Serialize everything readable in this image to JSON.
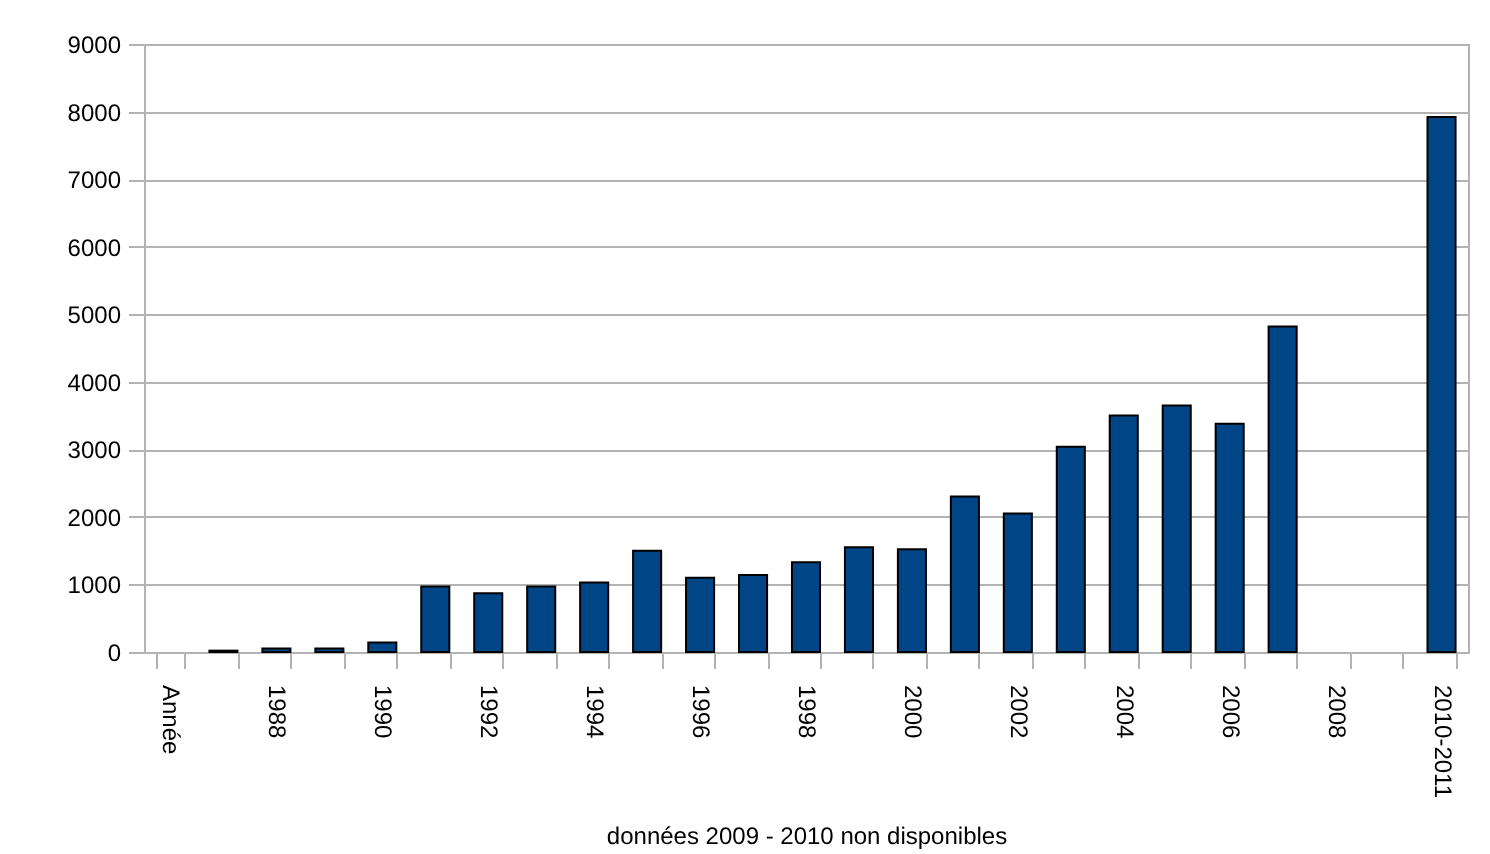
{
  "chart_data": {
    "type": "bar",
    "xlabel": "données 2009 - 2010 non disponibles",
    "categories": [
      "Année",
      null,
      "1988",
      null,
      "1990",
      null,
      "1992",
      null,
      "1994",
      null,
      "1996",
      null,
      "1998",
      null,
      "2000",
      null,
      "2002",
      null,
      "2004",
      null,
      "2006",
      null,
      "2008",
      null,
      "2010-2011"
    ],
    "values": [
      null,
      20,
      50,
      50,
      140,
      970,
      870,
      970,
      1030,
      1500,
      1100,
      1140,
      1330,
      1550,
      1520,
      2300,
      2050,
      3040,
      3500,
      3650,
      3380,
      4820,
      null,
      null,
      7920
    ],
    "color": "#004586",
    "ylim": [
      0,
      9000
    ],
    "yticks": [
      0,
      1000,
      2000,
      3000,
      4000,
      5000,
      6000,
      7000,
      8000,
      9000
    ],
    "grid": "y"
  }
}
